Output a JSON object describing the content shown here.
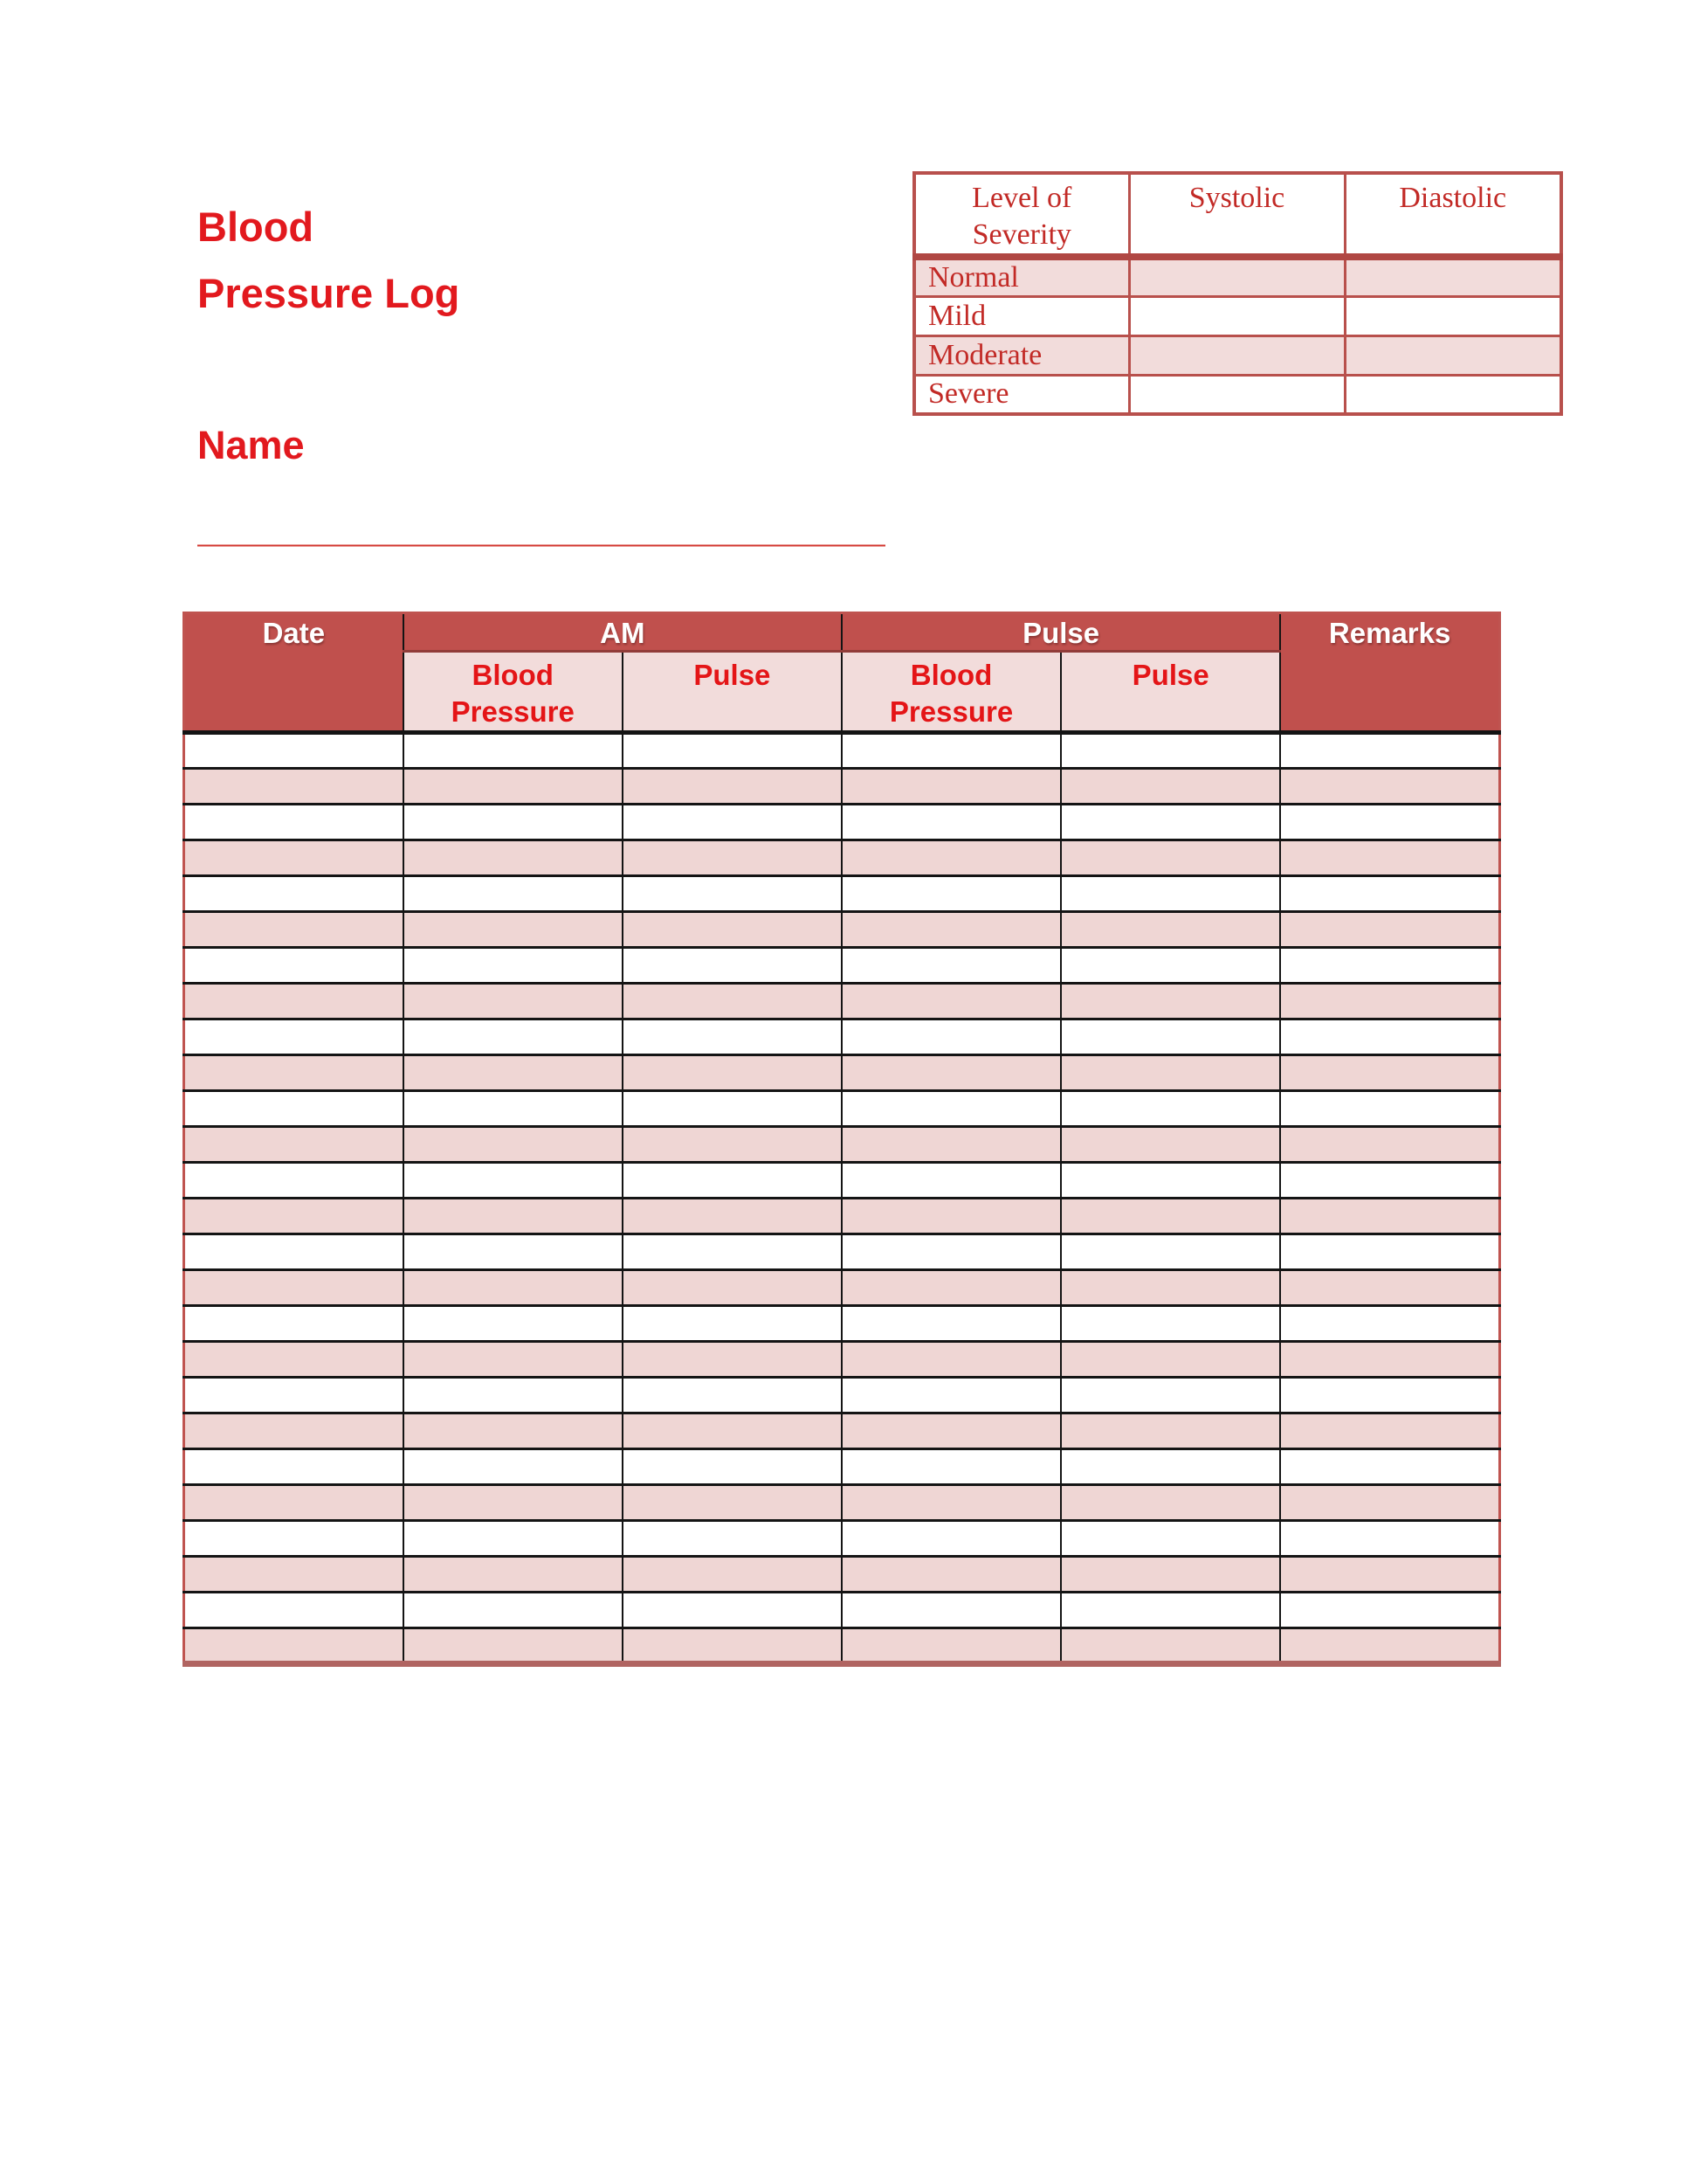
{
  "colors": {
    "accent_red": "#e2191e",
    "subheader_red": "#e41517",
    "severity_red": "#c22a26",
    "severity_border": "#b8504c",
    "header_bg": "#c0504d",
    "subheader_pink": "#f2dcdb",
    "row_pink": "#efd6d4"
  },
  "title": {
    "line1": "Blood",
    "line2": "Pressure Log"
  },
  "name": {
    "label": "Name",
    "line": "________________________________"
  },
  "severity_table": {
    "headers": [
      "Level of Severity",
      "Systolic",
      "Diastolic"
    ],
    "rows": [
      {
        "label": "Normal",
        "systolic": "",
        "diastolic": ""
      },
      {
        "label": "Mild",
        "systolic": "",
        "diastolic": ""
      },
      {
        "label": "Moderate",
        "systolic": "",
        "diastolic": ""
      },
      {
        "label": "Severe",
        "systolic": "",
        "diastolic": ""
      }
    ]
  },
  "log_table": {
    "columns": {
      "date": "Date",
      "am_group": "AM",
      "pm_group": "Pulse",
      "remarks": "Remarks",
      "blood_pressure": "Blood Pressure",
      "pulse": "Pulse"
    },
    "row_count": 26,
    "rows": []
  }
}
